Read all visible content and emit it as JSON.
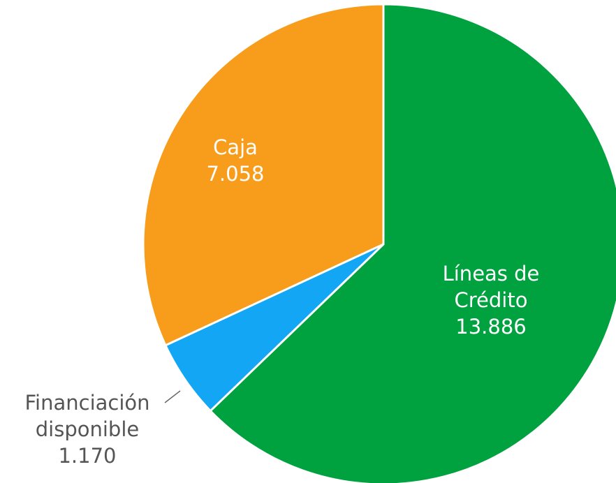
{
  "chart_data": {
    "type": "pie",
    "categories": [
      "Líneas de Crédito",
      "Financiación disponible",
      "Caja"
    ],
    "values": [
      13886,
      1170,
      7058
    ],
    "value_labels": [
      "13.886",
      "1.170",
      "7.058"
    ],
    "colors": [
      "#00a23f",
      "#12a6f5",
      "#f89c1c"
    ]
  }
}
